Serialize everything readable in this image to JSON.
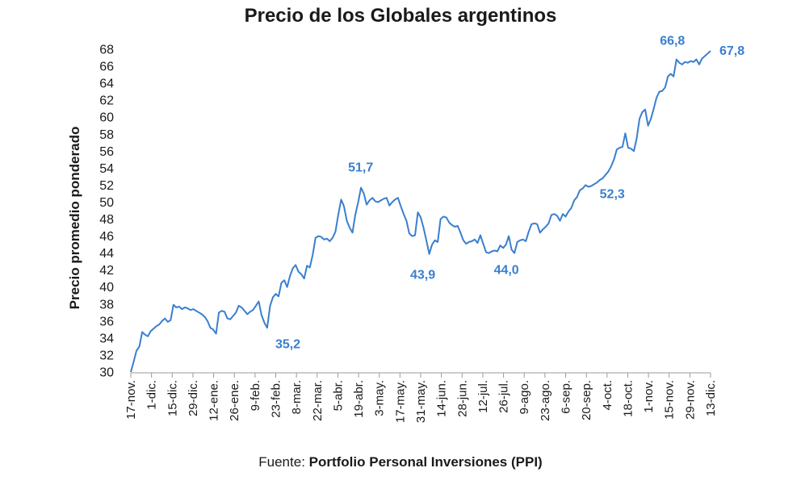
{
  "chart_data": {
    "type": "line",
    "title": "Precio de los Globales argentinos",
    "ylabel": "Precio promedio ponderado",
    "xlabel": "",
    "ylim": [
      30,
      68
    ],
    "yticks": [
      30,
      32,
      34,
      36,
      38,
      40,
      42,
      44,
      46,
      48,
      50,
      52,
      54,
      56,
      58,
      60,
      62,
      64,
      66,
      68
    ],
    "xticks": [
      "17-nov.",
      "1-dic.",
      "15-dic.",
      "29-dic.",
      "12-ene.",
      "26-ene.",
      "9-feb.",
      "23-feb.",
      "8-mar.",
      "22-mar.",
      "5-abr.",
      "19-abr.",
      "3-may.",
      "17-may.",
      "31-may.",
      "14-jun.",
      "28-jun.",
      "12-jul.",
      "26-jul.",
      "9-ago.",
      "23-ago.",
      "6-sep.",
      "20-sep.",
      "4-oct.",
      "18-oct.",
      "1-nov.",
      "15-nov.",
      "29-nov.",
      "13-dic."
    ],
    "line_color": "#3a7fcf",
    "grid": false,
    "series": [
      {
        "values": [
          [
            0,
            30.0
          ],
          [
            1,
            31.2
          ],
          [
            2,
            32.5
          ],
          [
            3,
            33.0
          ],
          [
            4,
            34.7
          ],
          [
            5,
            34.4
          ],
          [
            6,
            34.2
          ],
          [
            7,
            34.8
          ],
          [
            8,
            35.1
          ],
          [
            9,
            35.4
          ],
          [
            10,
            35.6
          ],
          [
            11,
            36.0
          ],
          [
            12,
            36.3
          ],
          [
            13,
            35.9
          ],
          [
            14,
            36.1
          ],
          [
            15,
            37.9
          ],
          [
            16,
            37.6
          ],
          [
            17,
            37.7
          ],
          [
            18,
            37.4
          ],
          [
            19,
            37.6
          ],
          [
            20,
            37.5
          ],
          [
            21,
            37.3
          ],
          [
            22,
            37.4
          ],
          [
            23,
            37.2
          ],
          [
            24,
            37.0
          ],
          [
            25,
            36.8
          ],
          [
            26,
            36.5
          ],
          [
            27,
            36.0
          ],
          [
            28,
            35.2
          ],
          [
            29,
            35.0
          ],
          [
            30,
            34.5
          ],
          [
            31,
            37.0
          ],
          [
            32,
            37.2
          ],
          [
            33,
            37.1
          ],
          [
            34,
            36.3
          ],
          [
            35,
            36.2
          ],
          [
            36,
            36.6
          ],
          [
            37,
            37.0
          ],
          [
            38,
            37.8
          ],
          [
            39,
            37.6
          ],
          [
            40,
            37.2
          ],
          [
            41,
            36.8
          ],
          [
            42,
            37.1
          ],
          [
            43,
            37.3
          ],
          [
            44,
            37.8
          ],
          [
            45,
            38.3
          ],
          [
            46,
            36.7
          ],
          [
            47,
            35.8
          ],
          [
            48,
            35.2
          ],
          [
            49,
            37.8
          ],
          [
            50,
            38.8
          ],
          [
            51,
            39.2
          ],
          [
            52,
            38.9
          ],
          [
            53,
            40.5
          ],
          [
            54,
            40.8
          ],
          [
            55,
            40.0
          ],
          [
            56,
            41.3
          ],
          [
            57,
            42.2
          ],
          [
            58,
            42.6
          ],
          [
            59,
            41.8
          ],
          [
            60,
            41.5
          ],
          [
            61,
            41.0
          ],
          [
            62,
            42.5
          ],
          [
            63,
            42.3
          ],
          [
            64,
            43.8
          ],
          [
            65,
            45.8
          ],
          [
            66,
            46.0
          ],
          [
            67,
            45.9
          ],
          [
            68,
            45.6
          ],
          [
            69,
            45.7
          ],
          [
            70,
            45.4
          ],
          [
            71,
            45.8
          ],
          [
            72,
            46.5
          ],
          [
            73,
            48.5
          ],
          [
            74,
            50.3
          ],
          [
            75,
            49.5
          ],
          [
            76,
            47.8
          ],
          [
            77,
            47.0
          ],
          [
            78,
            46.4
          ],
          [
            79,
            48.5
          ],
          [
            80,
            50.0
          ],
          [
            81,
            51.7
          ],
          [
            82,
            51.0
          ],
          [
            83,
            49.7
          ],
          [
            84,
            50.2
          ],
          [
            85,
            50.5
          ],
          [
            86,
            50.1
          ],
          [
            87,
            50.0
          ],
          [
            88,
            50.2
          ],
          [
            89,
            50.4
          ],
          [
            90,
            50.5
          ],
          [
            91,
            49.6
          ],
          [
            92,
            50.0
          ],
          [
            93,
            50.3
          ],
          [
            94,
            50.5
          ],
          [
            95,
            49.5
          ],
          [
            96,
            48.6
          ],
          [
            97,
            47.8
          ],
          [
            98,
            46.3
          ],
          [
            99,
            46.0
          ],
          [
            100,
            46.1
          ],
          [
            101,
            48.8
          ],
          [
            102,
            48.2
          ],
          [
            103,
            47.0
          ],
          [
            104,
            45.5
          ],
          [
            105,
            43.9
          ],
          [
            106,
            45.0
          ],
          [
            107,
            45.5
          ],
          [
            108,
            45.3
          ],
          [
            109,
            48.0
          ],
          [
            110,
            48.3
          ],
          [
            111,
            48.2
          ],
          [
            112,
            47.6
          ],
          [
            113,
            47.3
          ],
          [
            114,
            47.1
          ],
          [
            115,
            47.2
          ],
          [
            116,
            46.4
          ],
          [
            117,
            45.5
          ],
          [
            118,
            45.1
          ],
          [
            119,
            45.3
          ],
          [
            120,
            45.4
          ],
          [
            121,
            45.6
          ],
          [
            122,
            45.2
          ],
          [
            123,
            46.1
          ],
          [
            124,
            45.1
          ],
          [
            125,
            44.1
          ],
          [
            126,
            44.0
          ],
          [
            127,
            44.2
          ],
          [
            128,
            44.3
          ],
          [
            129,
            44.2
          ],
          [
            130,
            44.9
          ],
          [
            131,
            44.6
          ],
          [
            132,
            45.0
          ],
          [
            133,
            46.0
          ],
          [
            134,
            44.4
          ],
          [
            135,
            44.0
          ],
          [
            136,
            45.3
          ],
          [
            137,
            45.5
          ],
          [
            138,
            45.6
          ],
          [
            139,
            45.4
          ],
          [
            140,
            46.5
          ],
          [
            141,
            47.4
          ],
          [
            142,
            47.5
          ],
          [
            143,
            47.4
          ],
          [
            144,
            46.4
          ],
          [
            145,
            46.8
          ],
          [
            146,
            47.1
          ],
          [
            147,
            47.5
          ],
          [
            148,
            48.5
          ],
          [
            149,
            48.6
          ],
          [
            150,
            48.4
          ],
          [
            151,
            47.8
          ],
          [
            152,
            48.6
          ],
          [
            153,
            48.3
          ],
          [
            154,
            48.9
          ],
          [
            155,
            49.3
          ],
          [
            156,
            50.2
          ],
          [
            157,
            50.6
          ],
          [
            158,
            51.4
          ],
          [
            159,
            51.6
          ],
          [
            160,
            52.0
          ],
          [
            161,
            51.8
          ],
          [
            162,
            51.9
          ],
          [
            163,
            52.1
          ],
          [
            164,
            52.3
          ],
          [
            165,
            52.6
          ],
          [
            166,
            52.8
          ],
          [
            167,
            53.2
          ],
          [
            168,
            53.6
          ],
          [
            169,
            54.2
          ],
          [
            170,
            55.0
          ],
          [
            171,
            56.2
          ],
          [
            172,
            56.4
          ],
          [
            173,
            56.5
          ],
          [
            174,
            58.1
          ],
          [
            175,
            56.4
          ],
          [
            176,
            56.3
          ],
          [
            177,
            56.0
          ],
          [
            178,
            57.5
          ],
          [
            179,
            59.8
          ],
          [
            180,
            60.6
          ],
          [
            181,
            60.9
          ],
          [
            182,
            59.0
          ],
          [
            183,
            59.8
          ],
          [
            184,
            61.0
          ],
          [
            185,
            62.3
          ],
          [
            186,
            63.0
          ],
          [
            187,
            63.1
          ],
          [
            188,
            63.5
          ],
          [
            189,
            64.8
          ],
          [
            190,
            65.1
          ],
          [
            191,
            64.8
          ],
          [
            192,
            66.8
          ],
          [
            193,
            66.4
          ],
          [
            194,
            66.2
          ],
          [
            195,
            66.5
          ],
          [
            196,
            66.4
          ],
          [
            197,
            66.6
          ],
          [
            198,
            66.5
          ],
          [
            199,
            66.8
          ],
          [
            200,
            66.2
          ],
          [
            201,
            66.9
          ],
          [
            202,
            67.2
          ],
          [
            203,
            67.5
          ],
          [
            204,
            67.8
          ]
        ]
      }
    ],
    "annotations": [
      {
        "text": "35,2",
        "x": 48,
        "y": 35.2
      },
      {
        "text": "51,7",
        "x": 81,
        "y": 51.7
      },
      {
        "text": "43,9",
        "x": 105,
        "y": 43.9
      },
      {
        "text": "44,0",
        "x": 135,
        "y": 44.0
      },
      {
        "text": "52,3",
        "x": 164,
        "y": 52.3
      },
      {
        "text": "66,8",
        "x": 192,
        "y": 66.8
      },
      {
        "text": "67,8",
        "x": 204,
        "y": 67.8
      }
    ]
  },
  "source": {
    "prefix": "Fuente: ",
    "name": "Portfolio Personal Inversiones (PPI)"
  }
}
